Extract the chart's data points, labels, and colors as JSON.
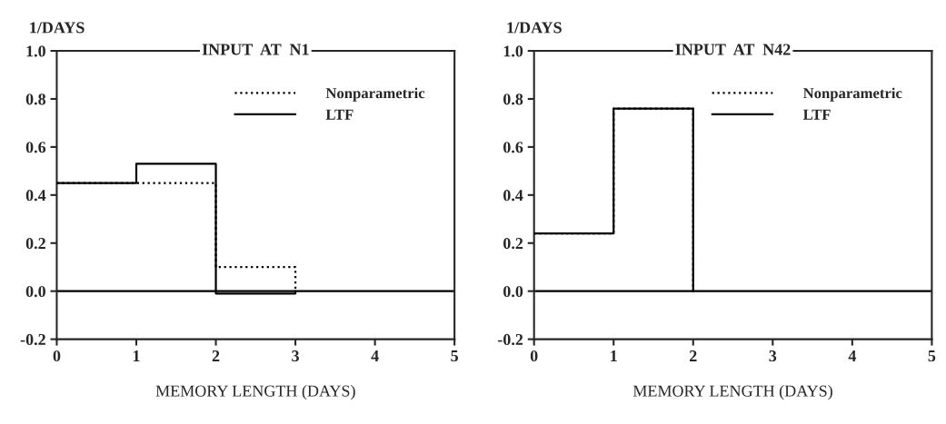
{
  "chart_data": [
    {
      "type": "step",
      "title": "INPUT  AT  N1",
      "xlabel": "MEMORY LENGTH (DAYS)",
      "ylabel": "1/DAYS",
      "xlim": [
        0,
        5
      ],
      "ylim": [
        -0.2,
        1.0
      ],
      "xticks": [
        0,
        1,
        2,
        3,
        4,
        5
      ],
      "yticks": [
        {
          "value": -0.2,
          "label": "-0.2"
        },
        {
          "value": 0,
          "label": "0.0"
        },
        {
          "value": 0.2,
          "label": "0.2"
        },
        {
          "value": 0.4,
          "label": "0.4"
        },
        {
          "value": 0.6,
          "label": "0.6"
        },
        {
          "value": 0.8,
          "label": "0.8"
        },
        {
          "value": 1.0,
          "label": "1.0"
        }
      ],
      "grid": false,
      "legend": "top right",
      "ref_lines": [
        {
          "axis": "y",
          "value": 0,
          "color": "#000000",
          "line_style": "solid"
        }
      ],
      "series": [
        {
          "name": "Nonparametric",
          "color": "#000000",
          "line_style": "dotted",
          "x": [
            0,
            1,
            2,
            3
          ],
          "values": [
            0.45,
            0.45,
            0.1,
            0.0
          ]
        },
        {
          "name": "LTF",
          "color": "#000000",
          "line_style": "solid",
          "x": [
            0,
            1,
            2,
            3
          ],
          "values": [
            0.45,
            0.53,
            -0.01,
            0.0
          ]
        }
      ]
    },
    {
      "type": "step",
      "title": "INPUT  AT  N42",
      "xlabel": "MEMORY LENGTH (DAYS)",
      "ylabel": "1/DAYS",
      "xlim": [
        0,
        5
      ],
      "ylim": [
        -0.2,
        1.0
      ],
      "xticks": [
        0,
        1,
        2,
        3,
        4,
        5
      ],
      "yticks": [
        {
          "value": -0.2,
          "label": "-0.2"
        },
        {
          "value": 0,
          "label": "0.0"
        },
        {
          "value": 0.2,
          "label": "0.2"
        },
        {
          "value": 0.4,
          "label": "0.4"
        },
        {
          "value": 0.6,
          "label": "0.6"
        },
        {
          "value": 0.8,
          "label": "0.8"
        },
        {
          "value": 1.0,
          "label": "1.0"
        }
      ],
      "grid": false,
      "legend": "top right",
      "ref_lines": [
        {
          "axis": "y",
          "value": 0,
          "color": "#000000",
          "line_style": "solid"
        }
      ],
      "series": [
        {
          "name": "Nonparametric",
          "color": "#000000",
          "line_style": "dotted",
          "x": [
            0,
            1,
            2
          ],
          "values": [
            0.24,
            0.76,
            0.0
          ]
        },
        {
          "name": "LTF",
          "color": "#000000",
          "line_style": "solid",
          "x": [
            0,
            1,
            2
          ],
          "values": [
            0.24,
            0.76,
            0.0
          ]
        }
      ]
    }
  ]
}
